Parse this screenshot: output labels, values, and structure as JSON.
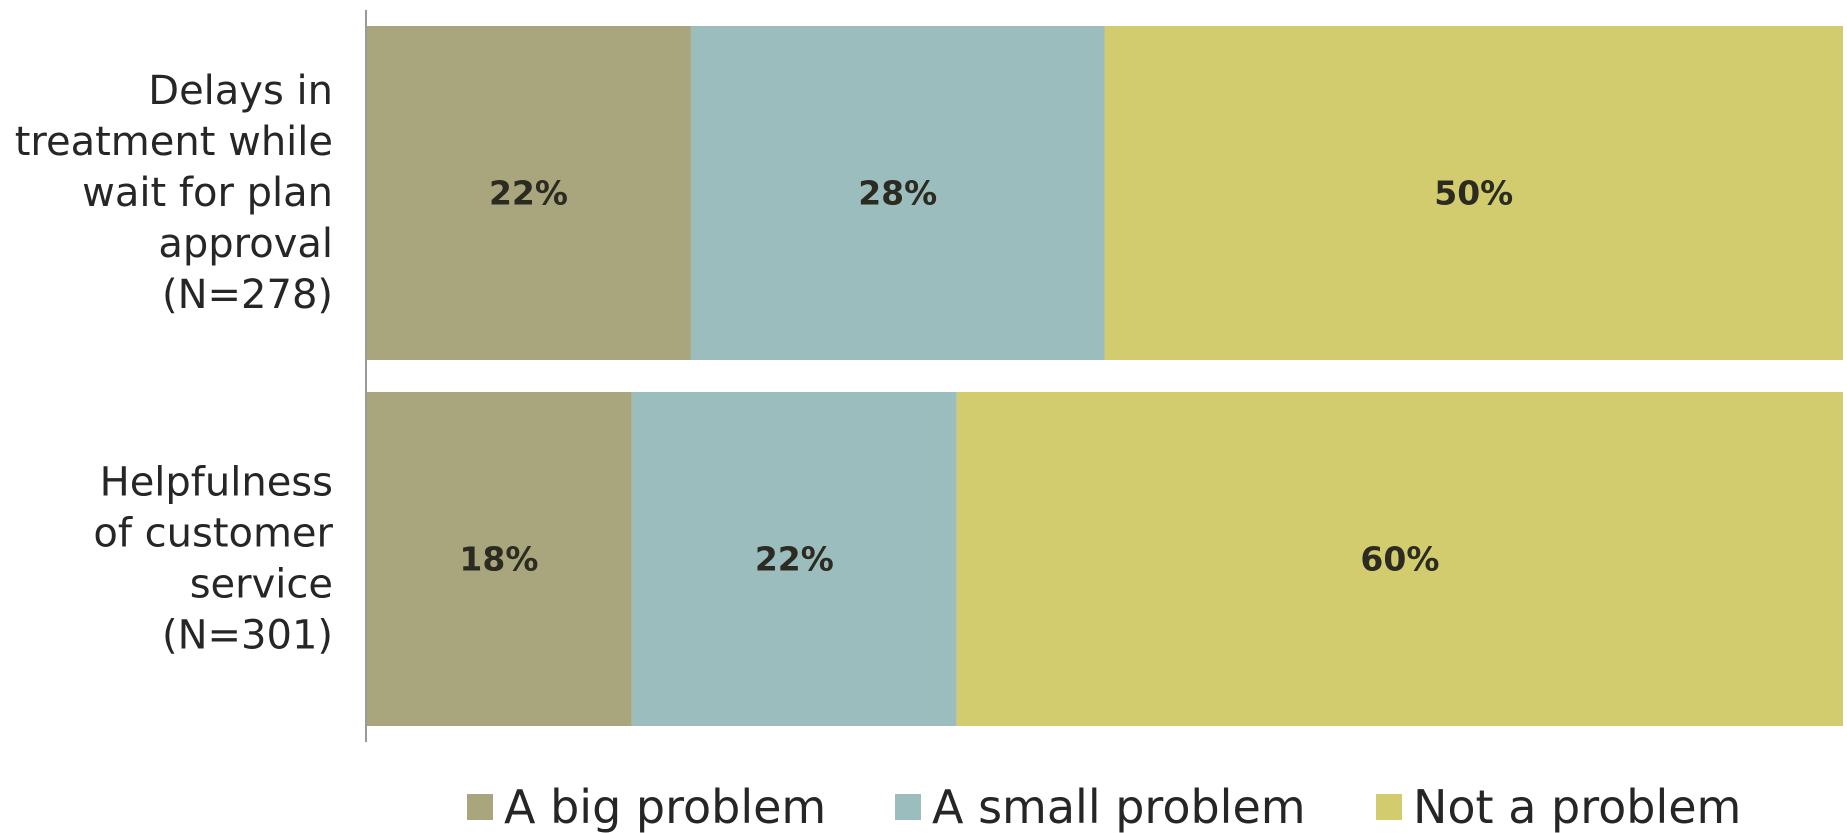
{
  "chart_data": {
    "type": "bar",
    "orientation": "horizontal",
    "stacked": true,
    "percent_stacked": true,
    "categories": [
      [
        "Delays in",
        "treatment while",
        "wait for plan",
        "approval",
        "(N=278)"
      ],
      [
        "Helpfulness",
        "of customer",
        "service",
        "(N=301)"
      ]
    ],
    "series": [
      {
        "name": "A big problem",
        "color": "#a9a67e",
        "values": [
          22,
          18
        ],
        "labels": [
          "22%",
          "18%"
        ]
      },
      {
        "name": "A small problem",
        "color": "#9cbdbd",
        "values": [
          28,
          22
        ],
        "labels": [
          "28%",
          "22%"
        ]
      },
      {
        "name": "Not a problem",
        "color": "#d2cc6e",
        "values": [
          50,
          60
        ],
        "labels": [
          "50%",
          "60%"
        ]
      }
    ],
    "xlim": [
      0,
      100
    ],
    "grid": false,
    "legend_position": "bottom"
  }
}
